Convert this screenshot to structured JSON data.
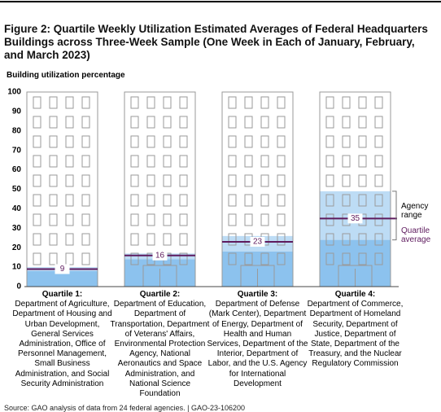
{
  "chart_data": {
    "type": "building-range",
    "title": "Figure 2: Quartile Weekly Utilization Estimated Averages of Federal Headquarters Buildings across Three-Week Sample (One Week in Each of January, February, and March 2023)",
    "y_label": "Building utilization percentage",
    "categories": [
      "Quartile 1:",
      "Quartile 2:",
      "Quartile 3:",
      "Quartile 4:"
    ],
    "descriptions": [
      "Department of Agriculture, Department of Housing and Urban Development, General Services Administration, Office of Personnel Management, Small Business Administration, and Social Security Administration",
      "Department of Education, Department of Transportation, Department of Veterans' Affairs, Environmental Protection Agency, National Aeronautics and Space Administration, and National Science Foundation",
      "Department of Defense (Mark Center), Department of Energy, Department of Health and Human Services, Department of the Interior, Department of Labor, and the U.S. Agency for International Development",
      "Department of Commerce, Department of Homeland Security, Department of Justice, Department of State, Department of the Treasury, and the Nuclear Regulatory Commission"
    ],
    "series": [
      {
        "name": "Agency range",
        "color": "#bddcf5",
        "base_color": "#8cc2ee",
        "low": [
          8,
          14,
          18,
          24
        ],
        "high": [
          10,
          17,
          26,
          49
        ]
      },
      {
        "name": "Quartile average",
        "color": "#5e1b5e",
        "values": [
          9,
          16,
          23,
          35
        ]
      }
    ],
    "ylim": [
      0,
      100
    ],
    "yticks": [
      0,
      10,
      20,
      30,
      40,
      50,
      60,
      70,
      80,
      90,
      100
    ],
    "source": "Source: GAO analysis of data from 24 federal agencies.  |  GAO-23-106200"
  }
}
